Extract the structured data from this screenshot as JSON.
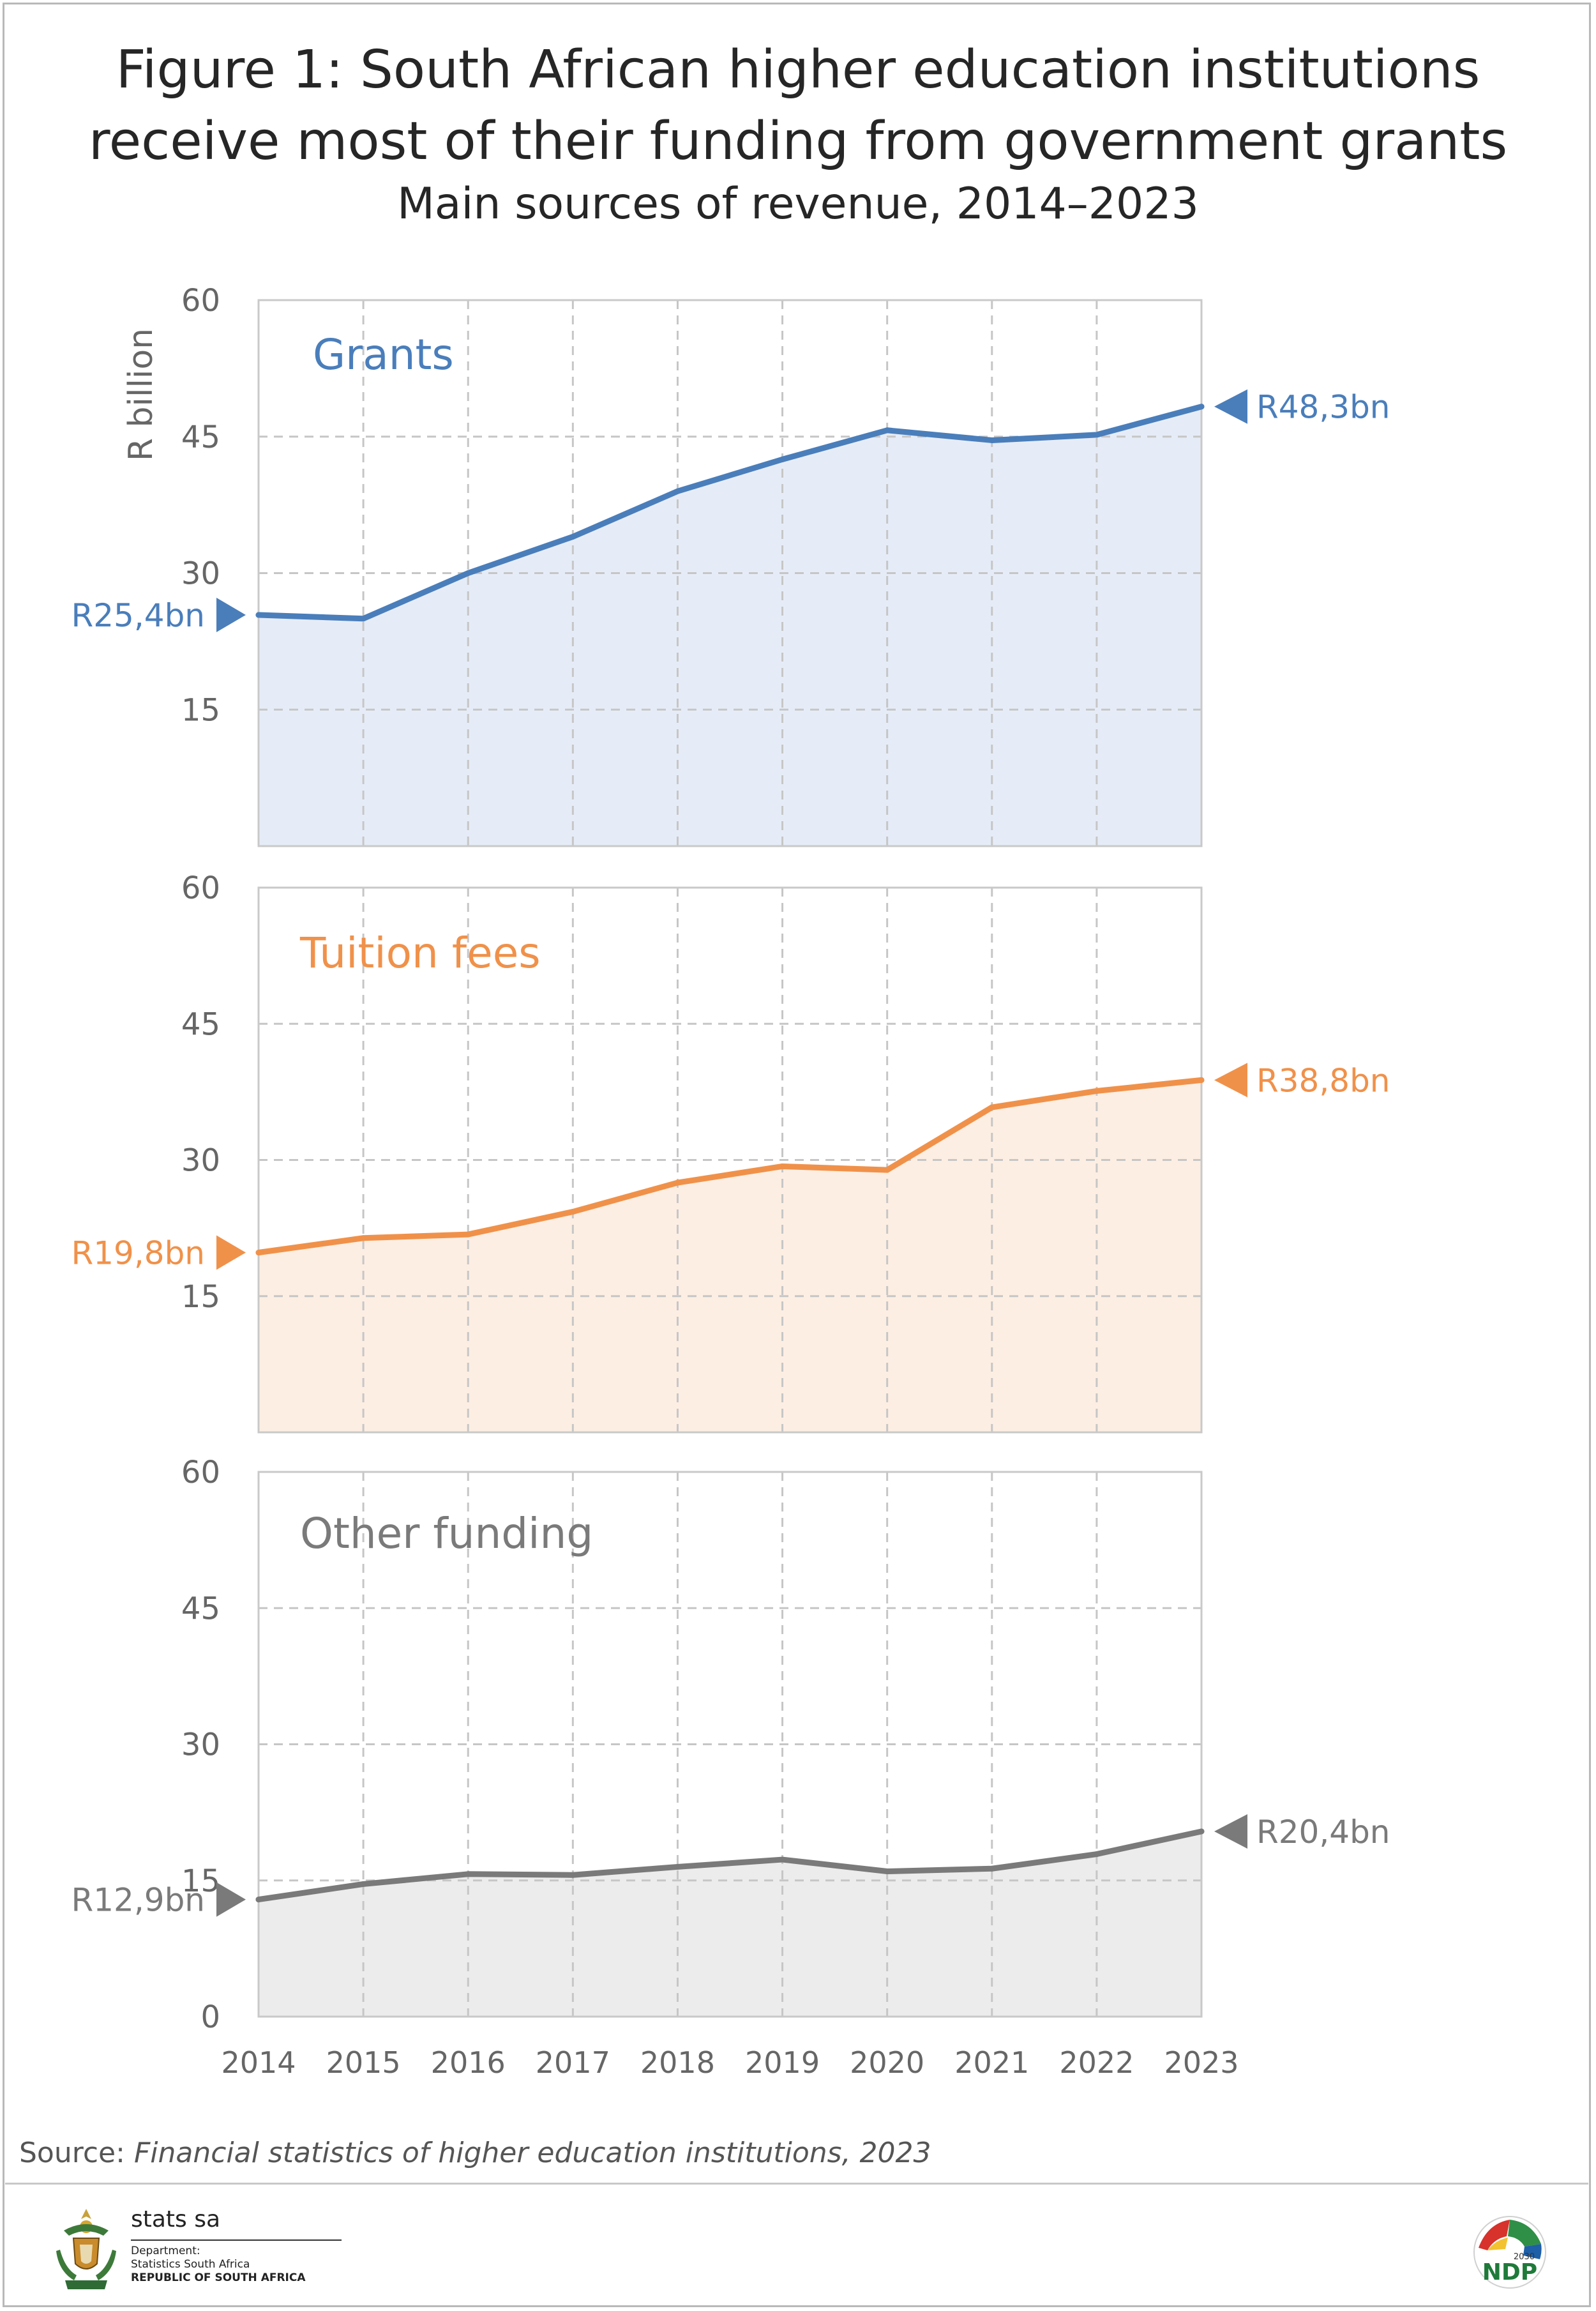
{
  "title_line1": "Figure 1: South African higher education institutions",
  "title_line2": "receive most of their funding from government grants",
  "subtitle": "Main sources of revenue, 2014–2023",
  "source_label": "Source:",
  "source_text": "Financial statistics of higher education institutions, 2023",
  "logos": {
    "statssa_brand": "stats sa",
    "statssa_dept_line1": "Department:",
    "statssa_dept_line2": "Statistics South Africa",
    "statssa_dept_line3": "REPUBLIC OF SOUTH AFRICA",
    "ndp_text": "NDP",
    "ndp_year": "2030"
  },
  "colors": {
    "grants": "#4a7ebb",
    "grants_fill": "#e6ecf7",
    "fees": "#f0914a",
    "fees_fill": "#fdeee3",
    "other": "#7a7a7a",
    "other_fill": "#ececec",
    "grid": "#c6c6c6",
    "axis_text": "#666666"
  },
  "chart_data": {
    "type": "area",
    "title": "Figure 1: South African higher education institutions receive most of their funding from government grants",
    "subtitle": "Main sources of revenue, 2014–2023",
    "ylabel": "R billion",
    "xlabel": "",
    "x": [
      2014,
      2015,
      2016,
      2017,
      2018,
      2019,
      2020,
      2021,
      2022,
      2023
    ],
    "x_labels": [
      "2014",
      "2015",
      "2016",
      "2017",
      "2018",
      "2019",
      "2020",
      "2021",
      "2022",
      "2023"
    ],
    "panels": [
      {
        "name": "Grants",
        "color_key": "grants",
        "ylim": [
          0,
          60
        ],
        "yticks": [
          15,
          30,
          45,
          60
        ],
        "ytick_labels": [
          "15",
          "30",
          "45",
          "60"
        ],
        "values": [
          25.4,
          25.0,
          30.0,
          34.0,
          39.0,
          42.5,
          45.7,
          44.6,
          45.2,
          48.3
        ],
        "start_label": "R25,4bn",
        "end_label": "R48,3bn"
      },
      {
        "name": "Tuition fees",
        "color_key": "fees",
        "ylim": [
          0,
          60
        ],
        "yticks": [
          15,
          30,
          45,
          60
        ],
        "ytick_labels": [
          "15",
          "30",
          "45",
          "60"
        ],
        "values": [
          19.8,
          21.4,
          21.8,
          24.3,
          27.5,
          29.3,
          28.9,
          35.8,
          37.6,
          38.8
        ],
        "start_label": "R19,8bn",
        "end_label": "R38,8bn"
      },
      {
        "name": "Other funding",
        "color_key": "other",
        "ylim": [
          0,
          60
        ],
        "yticks": [
          0,
          15,
          30,
          45,
          60
        ],
        "ytick_labels": [
          "0",
          "15",
          "30",
          "45",
          "60"
        ],
        "values": [
          12.9,
          14.6,
          15.7,
          15.6,
          16.5,
          17.3,
          16.0,
          16.3,
          17.9,
          20.4
        ],
        "start_label": "R12,9bn",
        "end_label": "R20,4bn"
      }
    ]
  }
}
